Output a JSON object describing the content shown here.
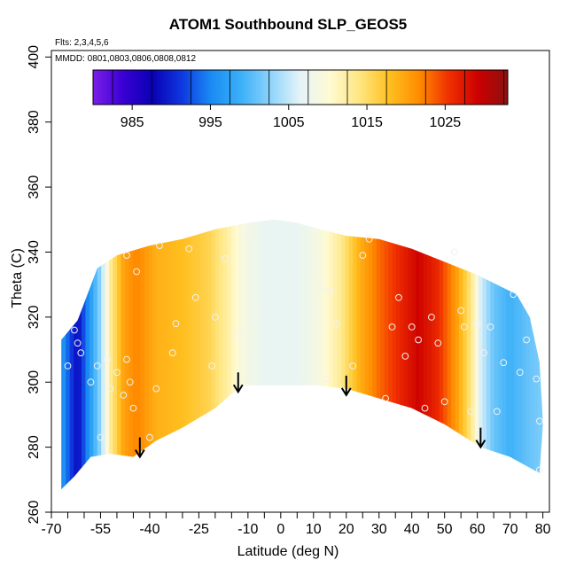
{
  "title": "ATOM1 Southbound SLP_GEOS5",
  "notes": {
    "flights": "Flts: 2,3,4,5,6",
    "mmdd": "MMDD: 0801,0803,0806,0808,0812"
  },
  "chart_data": {
    "type": "heatmap",
    "title": "ATOM1 Southbound SLP_GEOS5",
    "xlabel": "Latitude (deg N)",
    "ylabel": "Theta (C)",
    "xlim": [
      -70,
      82
    ],
    "ylim": [
      260,
      402
    ],
    "x_ticks": [
      -70,
      -55,
      -40,
      -25,
      -10,
      0,
      10,
      20,
      30,
      40,
      50,
      60,
      70,
      80
    ],
    "x_minor_ticks": [
      -65,
      -60,
      -50,
      -45,
      -35,
      -30,
      -20,
      -15,
      -5,
      5,
      15,
      25,
      35,
      45,
      55,
      65,
      75
    ],
    "y_ticks": [
      260,
      280,
      300,
      320,
      340,
      360,
      380,
      400
    ],
    "colorbar": {
      "min": 980,
      "max": 1033,
      "tick_values": [
        985,
        995,
        1005,
        1015,
        1025
      ],
      "tick_labels": [
        "985",
        "995",
        "1005",
        "1015",
        "1025"
      ],
      "stops": [
        "#7b1fe8",
        "#3a00d4",
        "#0a00b4",
        "#0e38e0",
        "#1a8cf4",
        "#3cb0f8",
        "#8ed4fb",
        "#e6f4f8",
        "#fffad2",
        "#ffe680",
        "#ffc020",
        "#ff8c00",
        "#f03000",
        "#cc0000",
        "#8c1010"
      ]
    },
    "slp_profile": [
      {
        "lat": -67,
        "slp": 997
      },
      {
        "lat": -62,
        "slp": 988
      },
      {
        "lat": -59,
        "slp": 995
      },
      {
        "lat": -55,
        "slp": 1003
      },
      {
        "lat": -52,
        "slp": 1013
      },
      {
        "lat": -48,
        "slp": 1020
      },
      {
        "lat": -44,
        "slp": 1022
      },
      {
        "lat": -38,
        "slp": 1019
      },
      {
        "lat": -30,
        "slp": 1018
      },
      {
        "lat": -22,
        "slp": 1016
      },
      {
        "lat": -17,
        "slp": 1013
      },
      {
        "lat": -12,
        "slp": 1009
      },
      {
        "lat": -5,
        "slp": 1007
      },
      {
        "lat": 5,
        "slp": 1007
      },
      {
        "lat": 12,
        "slp": 1009
      },
      {
        "lat": 18,
        "slp": 1013
      },
      {
        "lat": 24,
        "slp": 1019
      },
      {
        "lat": 30,
        "slp": 1023
      },
      {
        "lat": 36,
        "slp": 1026
      },
      {
        "lat": 42,
        "slp": 1029
      },
      {
        "lat": 48,
        "slp": 1026
      },
      {
        "lat": 54,
        "slp": 1020
      },
      {
        "lat": 58,
        "slp": 1014
      },
      {
        "lat": 61,
        "slp": 1006
      },
      {
        "lat": 65,
        "slp": 1001
      },
      {
        "lat": 70,
        "slp": 999
      },
      {
        "lat": 76,
        "slp": 1001
      },
      {
        "lat": 80,
        "slp": 1002
      }
    ],
    "data_envelope": {
      "top": [
        {
          "lat": -67,
          "theta": 313
        },
        {
          "lat": -62,
          "theta": 319
        },
        {
          "lat": -56,
          "theta": 335
        },
        {
          "lat": -50,
          "theta": 339
        },
        {
          "lat": -40,
          "theta": 342
        },
        {
          "lat": -30,
          "theta": 344
        },
        {
          "lat": -20,
          "theta": 347
        },
        {
          "lat": -10,
          "theta": 349
        },
        {
          "lat": -2,
          "theta": 350
        },
        {
          "lat": 5,
          "theta": 349
        },
        {
          "lat": 12,
          "theta": 347
        },
        {
          "lat": 20,
          "theta": 345
        },
        {
          "lat": 30,
          "theta": 344
        },
        {
          "lat": 40,
          "theta": 341
        },
        {
          "lat": 50,
          "theta": 337
        },
        {
          "lat": 60,
          "theta": 333
        },
        {
          "lat": 66,
          "theta": 330
        },
        {
          "lat": 72,
          "theta": 327
        },
        {
          "lat": 76,
          "theta": 320
        },
        {
          "lat": 79,
          "theta": 306
        },
        {
          "lat": 80,
          "theta": 288
        }
      ],
      "bottom": [
        {
          "lat": 80,
          "theta": 287
        },
        {
          "lat": 79,
          "theta": 272
        },
        {
          "lat": 70,
          "theta": 277
        },
        {
          "lat": 61,
          "theta": 280
        },
        {
          "lat": 50,
          "theta": 287
        },
        {
          "lat": 40,
          "theta": 292
        },
        {
          "lat": 30,
          "theta": 295
        },
        {
          "lat": 20,
          "theta": 298
        },
        {
          "lat": 10,
          "theta": 299
        },
        {
          "lat": 0,
          "theta": 299
        },
        {
          "lat": -12,
          "theta": 299
        },
        {
          "lat": -20,
          "theta": 292
        },
        {
          "lat": -30,
          "theta": 286
        },
        {
          "lat": -38,
          "theta": 282
        },
        {
          "lat": -45,
          "theta": 277
        },
        {
          "lat": -52,
          "theta": 278
        },
        {
          "lat": -58,
          "theta": 277
        },
        {
          "lat": -63,
          "theta": 271
        },
        {
          "lat": -67,
          "theta": 267
        }
      ]
    },
    "arrows": [
      {
        "lat": -43,
        "theta": 277
      },
      {
        "lat": -13,
        "theta": 297
      },
      {
        "lat": 20,
        "theta": 296
      },
      {
        "lat": 61,
        "theta": 280
      }
    ],
    "observations": [
      {
        "lat": -63,
        "theta": 316
      },
      {
        "lat": -62,
        "theta": 312
      },
      {
        "lat": -61,
        "theta": 309
      },
      {
        "lat": -65,
        "theta": 305
      },
      {
        "lat": -58,
        "theta": 300
      },
      {
        "lat": -56,
        "theta": 305
      },
      {
        "lat": -55,
        "theta": 283
      },
      {
        "lat": -53,
        "theta": 307
      },
      {
        "lat": -52,
        "theta": 298
      },
      {
        "lat": -50,
        "theta": 303
      },
      {
        "lat": -48,
        "theta": 296
      },
      {
        "lat": -46,
        "theta": 300
      },
      {
        "lat": -47,
        "theta": 307
      },
      {
        "lat": -45,
        "theta": 292
      },
      {
        "lat": -44,
        "theta": 334
      },
      {
        "lat": -47,
        "theta": 339
      },
      {
        "lat": -40,
        "theta": 283
      },
      {
        "lat": -38,
        "theta": 298
      },
      {
        "lat": -37,
        "theta": 342
      },
      {
        "lat": -33,
        "theta": 309
      },
      {
        "lat": -32,
        "theta": 318
      },
      {
        "lat": -28,
        "theta": 341
      },
      {
        "lat": -26,
        "theta": 326
      },
      {
        "lat": -20,
        "theta": 320
      },
      {
        "lat": -21,
        "theta": 305
      },
      {
        "lat": -17,
        "theta": 338
      },
      {
        "lat": -13,
        "theta": 315
      },
      {
        "lat": -10,
        "theta": 346
      },
      {
        "lat": -5,
        "theta": 323
      },
      {
        "lat": -2,
        "theta": 330
      },
      {
        "lat": 2,
        "theta": 314
      },
      {
        "lat": 3,
        "theta": 329
      },
      {
        "lat": 4,
        "theta": 300
      },
      {
        "lat": 8,
        "theta": 322
      },
      {
        "lat": 9,
        "theta": 336
      },
      {
        "lat": 12,
        "theta": 329
      },
      {
        "lat": 15,
        "theta": 328
      },
      {
        "lat": 17,
        "theta": 318
      },
      {
        "lat": 14,
        "theta": 301
      },
      {
        "lat": 22,
        "theta": 305
      },
      {
        "lat": 25,
        "theta": 339
      },
      {
        "lat": 27,
        "theta": 344
      },
      {
        "lat": 32,
        "theta": 295
      },
      {
        "lat": 34,
        "theta": 317
      },
      {
        "lat": 36,
        "theta": 326
      },
      {
        "lat": 38,
        "theta": 308
      },
      {
        "lat": 40,
        "theta": 317
      },
      {
        "lat": 42,
        "theta": 313
      },
      {
        "lat": 44,
        "theta": 292
      },
      {
        "lat": 46,
        "theta": 320
      },
      {
        "lat": 48,
        "theta": 312
      },
      {
        "lat": 50,
        "theta": 294
      },
      {
        "lat": 53,
        "theta": 340
      },
      {
        "lat": 55,
        "theta": 322
      },
      {
        "lat": 56,
        "theta": 317
      },
      {
        "lat": 58,
        "theta": 291
      },
      {
        "lat": 60,
        "theta": 318
      },
      {
        "lat": 62,
        "theta": 309
      },
      {
        "lat": 64,
        "theta": 317
      },
      {
        "lat": 66,
        "theta": 291
      },
      {
        "lat": 68,
        "theta": 306
      },
      {
        "lat": 71,
        "theta": 327
      },
      {
        "lat": 73,
        "theta": 303
      },
      {
        "lat": 75,
        "theta": 313
      },
      {
        "lat": 78,
        "theta": 301
      },
      {
        "lat": 79,
        "theta": 288
      },
      {
        "lat": 79,
        "theta": 273
      }
    ],
    "grid": false,
    "legend": "top (horizontal colorbar)"
  }
}
